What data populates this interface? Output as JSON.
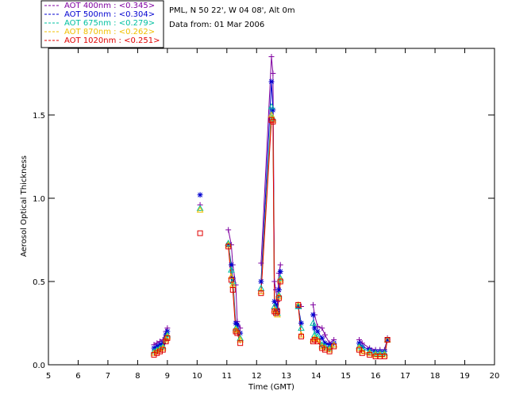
{
  "chart_data": {
    "type": "line",
    "title": "",
    "info_line1": "PML, N 50 22', W 04 08', Alt 0m",
    "info_line2": "Data from: 01 Mar 2006",
    "xlabel": "Time (GMT)",
    "ylabel": "Aerosol Optical Thickness",
    "xlim": [
      5,
      20
    ],
    "ylim": [
      0,
      1.9
    ],
    "xticks": [
      5,
      6,
      7,
      8,
      9,
      10,
      11,
      12,
      13,
      14,
      15,
      16,
      17,
      18,
      19,
      20
    ],
    "yticks": [
      0.0,
      0.5,
      1.0,
      1.5
    ],
    "ytick_labels": [
      "0.0",
      "0.5",
      "1.0",
      "1.5"
    ],
    "legend_position": "top-left",
    "series": [
      {
        "name": "AOT  400nm : <0.345>",
        "color": "#7f00a0",
        "marker": "plus",
        "x": [
          8.55,
          8.65,
          8.75,
          8.85,
          8.95,
          9.0,
          10.1,
          11.05,
          11.15,
          11.2,
          11.3,
          11.35,
          11.45,
          12.15,
          12.5,
          12.55,
          12.6,
          12.65,
          12.7,
          12.75,
          12.8,
          13.4,
          13.5,
          13.9,
          13.95,
          14.05,
          14.2,
          14.3,
          14.45,
          14.6,
          15.45,
          15.55,
          15.8,
          16.0,
          16.15,
          16.3,
          16.4
        ],
        "y": [
          0.12,
          0.13,
          0.14,
          0.15,
          0.2,
          0.22,
          0.96,
          0.81,
          0.72,
          0.6,
          0.48,
          0.26,
          0.22,
          0.61,
          1.85,
          1.75,
          0.5,
          0.45,
          0.38,
          0.55,
          0.6,
          0.36,
          0.35,
          0.36,
          0.3,
          0.23,
          0.22,
          0.18,
          0.13,
          0.15,
          0.15,
          0.13,
          0.1,
          0.09,
          0.09,
          0.09,
          0.16
        ]
      },
      {
        "name": "AOT  500nm : <0.304>",
        "color": "#0000d0",
        "marker": "asterisk",
        "x": [
          8.55,
          8.65,
          8.75,
          8.85,
          8.95,
          9.0,
          10.1,
          11.05,
          11.15,
          11.2,
          11.3,
          11.35,
          11.45,
          12.15,
          12.5,
          12.55,
          12.6,
          12.65,
          12.7,
          12.75,
          12.8,
          13.4,
          13.5,
          13.9,
          13.95,
          14.05,
          14.2,
          14.3,
          14.45,
          14.6,
          15.45,
          15.55,
          15.8,
          16.0,
          16.15,
          16.3,
          16.4
        ],
        "y": [
          0.1,
          0.11,
          0.12,
          0.13,
          0.18,
          0.2,
          1.02,
          0.72,
          0.6,
          0.52,
          0.25,
          0.24,
          0.19,
          0.5,
          1.7,
          1.53,
          0.38,
          0.36,
          0.33,
          0.45,
          0.56,
          0.35,
          0.25,
          0.3,
          0.22,
          0.2,
          0.16,
          0.13,
          0.12,
          0.13,
          0.13,
          0.11,
          0.09,
          0.08,
          0.08,
          0.08,
          0.15
        ]
      },
      {
        "name": "AOT  675nm : <0.279>",
        "color": "#00c0a0",
        "marker": "triangle",
        "x": [
          8.55,
          8.65,
          8.75,
          8.85,
          8.95,
          9.0,
          10.1,
          11.05,
          11.15,
          11.2,
          11.3,
          11.35,
          11.45,
          12.15,
          12.5,
          12.55,
          12.6,
          12.65,
          12.7,
          12.75,
          12.8,
          13.4,
          13.5,
          13.9,
          13.95,
          14.05,
          14.2,
          14.3,
          14.45,
          14.6,
          15.45,
          15.55,
          15.8,
          16.0,
          16.15,
          16.3,
          16.4
        ],
        "y": [
          0.08,
          0.09,
          0.1,
          0.11,
          0.16,
          0.18,
          0.94,
          0.73,
          0.57,
          0.5,
          0.22,
          0.21,
          0.16,
          0.46,
          1.55,
          1.48,
          0.35,
          0.33,
          0.31,
          0.42,
          0.52,
          0.35,
          0.22,
          0.25,
          0.18,
          0.17,
          0.12,
          0.11,
          0.1,
          0.12,
          0.11,
          0.1,
          0.08,
          0.07,
          0.07,
          0.07,
          0.15
        ]
      },
      {
        "name": "AOT  870nm : <0.262>",
        "color": "#f0c000",
        "marker": "triangle",
        "x": [
          8.55,
          8.65,
          8.75,
          8.85,
          8.95,
          9.0,
          10.1,
          11.05,
          11.15,
          11.2,
          11.3,
          11.35,
          11.45,
          12.15,
          12.5,
          12.55,
          12.6,
          12.65,
          12.7,
          12.75,
          12.8,
          13.4,
          13.5,
          13.9,
          13.95,
          14.05,
          14.2,
          14.3,
          14.45,
          14.6,
          15.45,
          15.55,
          15.8,
          16.0,
          16.15,
          16.3,
          16.4
        ],
        "y": [
          0.07,
          0.08,
          0.09,
          0.1,
          0.15,
          0.17,
          0.93,
          0.72,
          0.53,
          0.48,
          0.21,
          0.2,
          0.15,
          0.44,
          1.5,
          1.47,
          0.33,
          0.32,
          0.3,
          0.41,
          0.51,
          0.36,
          0.18,
          0.15,
          0.16,
          0.15,
          0.11,
          0.1,
          0.09,
          0.12,
          0.1,
          0.08,
          0.07,
          0.06,
          0.06,
          0.06,
          0.15
        ]
      },
      {
        "name": "AOT 1020nm : <0.251>",
        "color": "#e00000",
        "marker": "square",
        "x": [
          8.55,
          8.65,
          8.75,
          8.85,
          8.95,
          9.0,
          10.1,
          11.05,
          11.15,
          11.2,
          11.3,
          11.35,
          11.45,
          12.15,
          12.5,
          12.55,
          12.6,
          12.65,
          12.7,
          12.75,
          12.8,
          13.4,
          13.5,
          13.9,
          13.95,
          14.05,
          14.2,
          14.3,
          14.45,
          14.6,
          15.45,
          15.55,
          15.8,
          16.0,
          16.15,
          16.3,
          16.4
        ],
        "y": [
          0.06,
          0.07,
          0.08,
          0.09,
          0.14,
          0.16,
          0.79,
          0.71,
          0.51,
          0.45,
          0.2,
          0.19,
          0.13,
          0.43,
          1.47,
          1.46,
          0.32,
          0.31,
          0.32,
          0.4,
          0.5,
          0.36,
          0.17,
          0.14,
          0.15,
          0.14,
          0.1,
          0.09,
          0.08,
          0.11,
          0.09,
          0.07,
          0.06,
          0.05,
          0.05,
          0.05,
          0.15
        ]
      }
    ]
  }
}
